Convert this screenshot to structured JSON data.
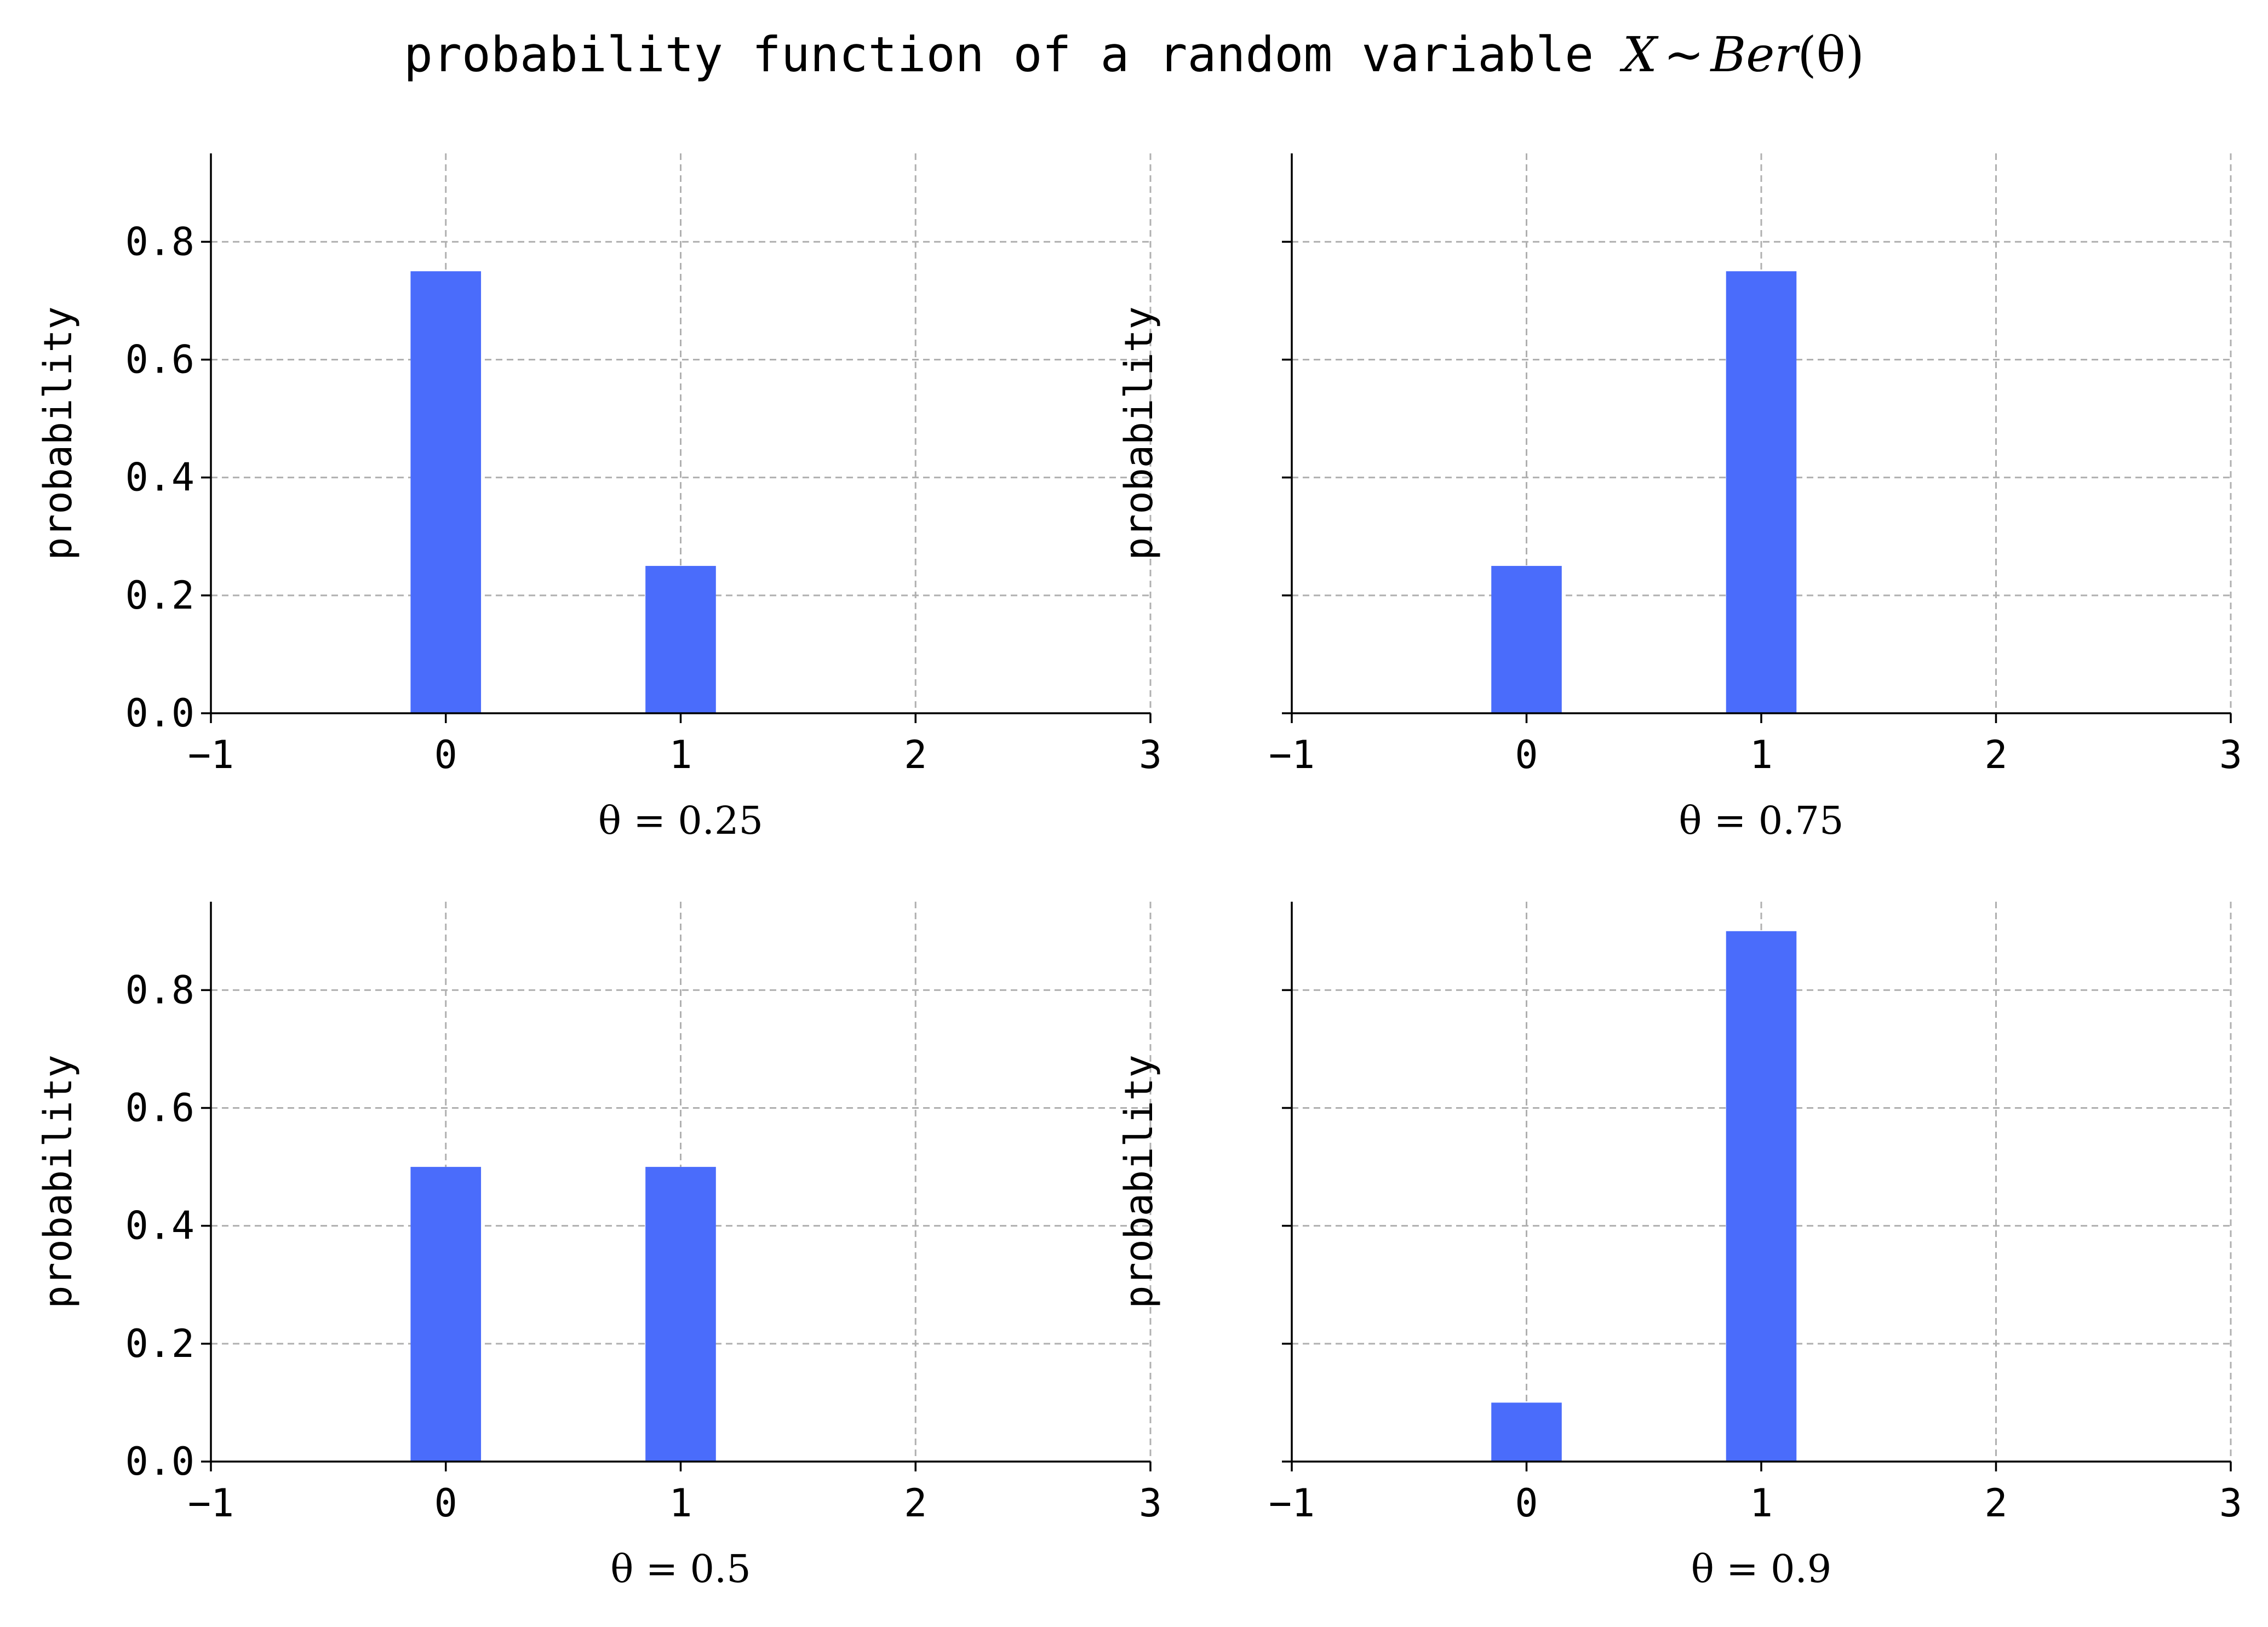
{
  "figure": {
    "title_text": "probability function of a random variable ",
    "title_math_var": "X",
    "title_math_sim": "~",
    "title_math_dist": "Ber",
    "title_math_arg": "(θ)"
  },
  "colors": {
    "bar": "#4a6cfb",
    "grid": "#b0b0b0",
    "axis": "#000000"
  },
  "chart_data": [
    {
      "type": "bar",
      "x": [
        0,
        1
      ],
      "values": [
        0.75,
        0.25
      ],
      "xlabel": "θ = 0.25",
      "ylabel": "probability",
      "xlim": [
        -1,
        3
      ],
      "ylim": [
        0,
        0.95
      ],
      "xticks": [
        "−1",
        "0",
        "1",
        "2",
        "3"
      ],
      "yticks": [
        "0.0",
        "0.2",
        "0.4",
        "0.6",
        "0.8"
      ],
      "show_ytick_labels": true,
      "grid": true
    },
    {
      "type": "bar",
      "x": [
        0,
        1
      ],
      "values": [
        0.25,
        0.75
      ],
      "xlabel": "θ = 0.75",
      "ylabel": "probability",
      "xlim": [
        -1,
        3
      ],
      "ylim": [
        0,
        0.95
      ],
      "xticks": [
        "−1",
        "0",
        "1",
        "2",
        "3"
      ],
      "yticks": [
        "0.0",
        "0.2",
        "0.4",
        "0.6",
        "0.8"
      ],
      "show_ytick_labels": false,
      "grid": true
    },
    {
      "type": "bar",
      "x": [
        0,
        1
      ],
      "values": [
        0.5,
        0.5
      ],
      "xlabel": "θ = 0.5",
      "ylabel": "probability",
      "xlim": [
        -1,
        3
      ],
      "ylim": [
        0,
        0.95
      ],
      "xticks": [
        "−1",
        "0",
        "1",
        "2",
        "3"
      ],
      "yticks": [
        "0.0",
        "0.2",
        "0.4",
        "0.6",
        "0.8"
      ],
      "show_ytick_labels": true,
      "grid": true
    },
    {
      "type": "bar",
      "x": [
        0,
        1
      ],
      "values": [
        0.1,
        0.9
      ],
      "xlabel": "θ = 0.9",
      "ylabel": "probability",
      "xlim": [
        -1,
        3
      ],
      "ylim": [
        0,
        0.95
      ],
      "xticks": [
        "−1",
        "0",
        "1",
        "2",
        "3"
      ],
      "yticks": [
        "0.0",
        "0.2",
        "0.4",
        "0.6",
        "0.8"
      ],
      "show_ytick_labels": false,
      "grid": true
    }
  ]
}
